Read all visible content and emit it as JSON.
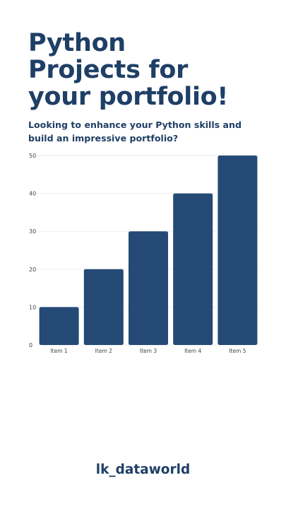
{
  "title_lines": [
    "Python",
    "Projects for",
    "your portfolio!"
  ],
  "subtitle": "Looking to enhance your Python skills and build an impressive portfolio?",
  "brand": "lk_dataworld",
  "chart_data": {
    "type": "bar",
    "categories": [
      "Item 1",
      "Item 2",
      "Item 3",
      "Item 4",
      "Item 5"
    ],
    "values": [
      10,
      20,
      30,
      40,
      50
    ],
    "title": "",
    "xlabel": "",
    "ylabel": "",
    "ylim": [
      0,
      50
    ],
    "yticks": [
      0,
      10,
      20,
      30,
      40,
      50
    ],
    "grid": true,
    "legend": "none",
    "bar_color": "#244a75"
  }
}
